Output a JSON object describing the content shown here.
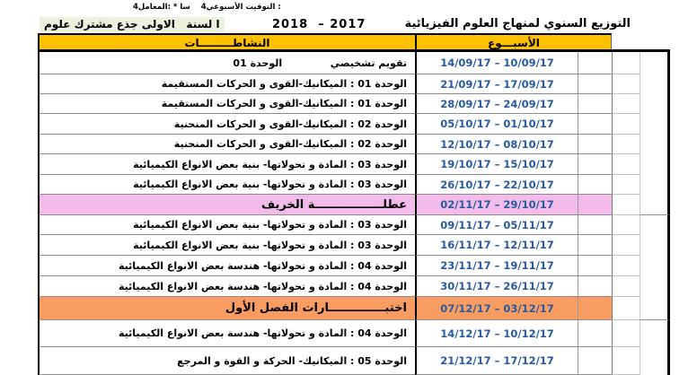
{
  "meta_line": "4المعامل‎: * سا‎    4التوقيت الأسبوعي‎ :",
  "header": {
    "title": "التوزيع السنوي لمنهاج العلوم الفيزيائية",
    "years_display": "2018  – 2017",
    "level": "ا لسنة   الاولى جذع مشترك علوم"
  },
  "columns": {
    "week": "الأسبـــوع",
    "activities": "النشاطـــــــــات"
  },
  "rows": [
    {
      "type": "normal",
      "activity": "تقويم تشخيصي              الوحدة 01",
      "week": "14/09/17 – 10/09/17"
    },
    {
      "type": "normal",
      "activity": "الوحدة 01 : الميكانيك-القوى و الحركات المستقيمة",
      "week": "21/09/17 – 17/09/17"
    },
    {
      "type": "normal",
      "activity": "الوحدة 01 : الميكانيك-القوى و الحركات المستقيمة",
      "week": "28/09/17 – 24/09/17"
    },
    {
      "type": "normal",
      "activity": "الوحدة 02 : الميكانيك-القوى و الحركات المنحنية",
      "week": "05/10/17 – 01/10/17"
    },
    {
      "type": "normal",
      "activity": "الوحدة 02 : الميكانيك-القوى و الحركات المنحنية",
      "week": "12/10/17 – 08/10/17"
    },
    {
      "type": "normal",
      "activity": "الوحدة 03 : المادة و تحولاتها- بنية بعض الانواع الكيميائية",
      "week": "19/10/17 – 15/10/17"
    },
    {
      "type": "normal",
      "activity": "الوحدة 03 : المادة و تحولاتها- بنية بعض الانواع الكيميائية",
      "week": "26/10/17 – 22/10/17"
    },
    {
      "type": "holiday",
      "activity": "عطلـــــــــــــــــة الخريف",
      "week": "02/11/17 – 29/10/17"
    },
    {
      "type": "normal",
      "activity": "الوحدة 03 : المادة و تحولاتها- بنية بعض الانواع الكيميائية",
      "week": "09/11/17 – 05/11/17"
    },
    {
      "type": "normal",
      "activity": "الوحدة 03 : المادة و تحولاتها- بنية بعض الانواع الكيميائية",
      "week": "16/11/17 – 12/11/17"
    },
    {
      "type": "normal",
      "activity": "الوحدة 04 : المادة و تحولاتها- هندسة بعض الانواع الكيميائية",
      "week": "23/11/17 – 19/11/17"
    },
    {
      "type": "normal",
      "activity": "الوحدة 04 : المادة و تحولاتها- هندسة بعض الانواع الكيميائية",
      "week": "30/11/17 – 26/11/17"
    },
    {
      "type": "exam",
      "activity": "اختبــــــــــــــارات الفصل الأول",
      "week": "07/12/17 – 03/12/17"
    },
    {
      "type": "normal",
      "activity": "الوحدة 04 : المادة و تحولاتها- هندسة بعض الانواع الكيميائية",
      "week": "14/12/17 – 10/12/17"
    },
    {
      "type": "normal",
      "activity": "الوحدة 05 : الميكانيك- الحركة و القوة و المرجع",
      "week": "21/12/17 – 17/12/17"
    }
  ],
  "colors": {
    "header_bg": "#FFC000",
    "holiday_bg": "#F2BBE9",
    "exam_bg": "#F99C61",
    "date_text": "#275A9F",
    "level_highlight": "#EAF1DD"
  }
}
